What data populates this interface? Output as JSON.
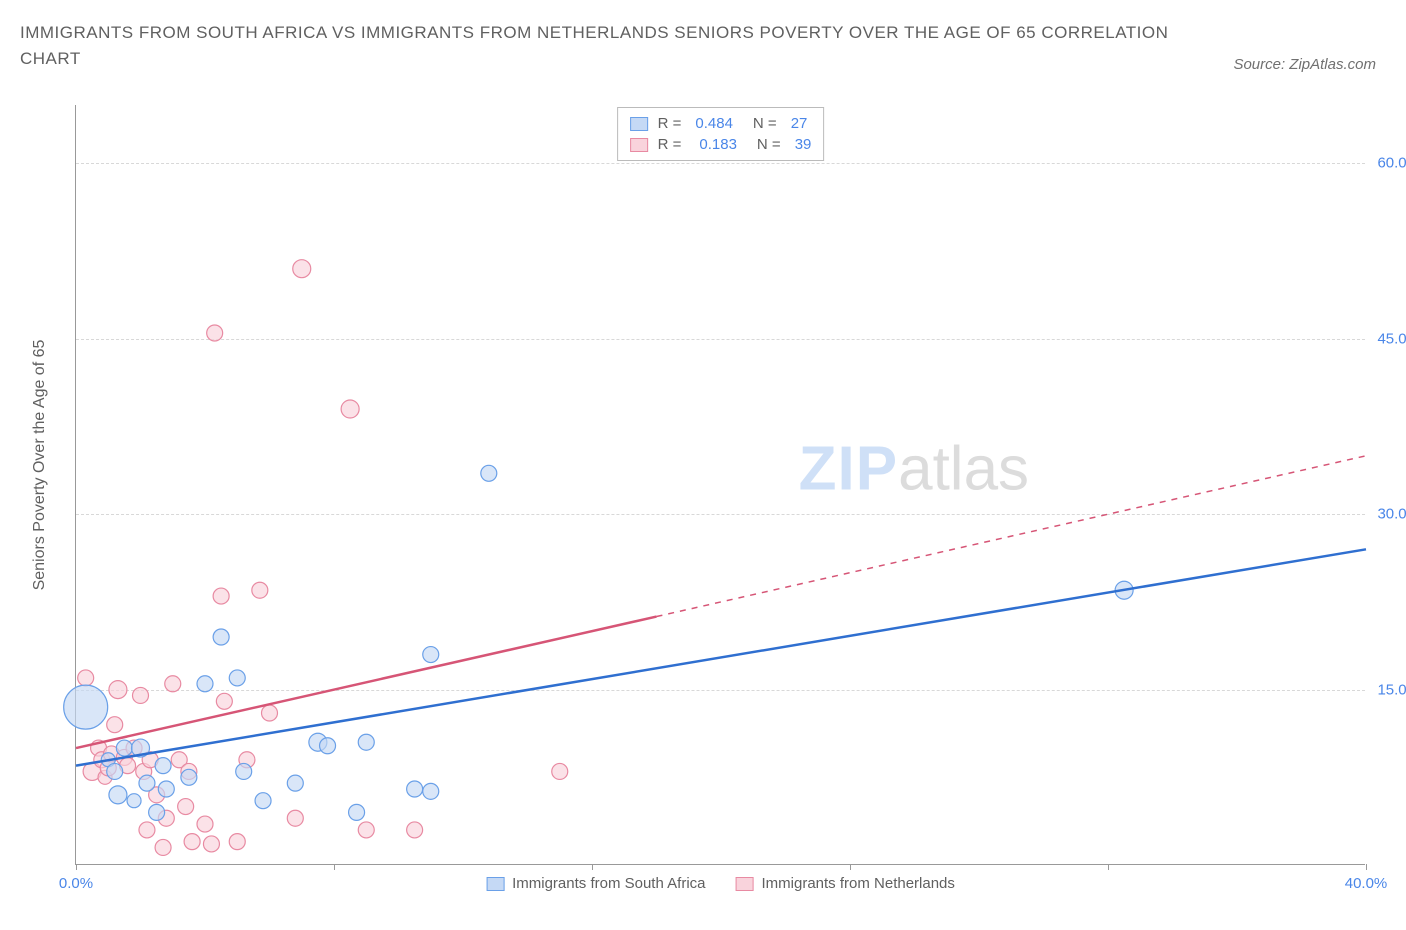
{
  "title": "IMMIGRANTS FROM SOUTH AFRICA VS IMMIGRANTS FROM NETHERLANDS SENIORS POVERTY OVER THE AGE OF 65 CORRELATION CHART",
  "source": "Source: ZipAtlas.com",
  "y_axis_label": "Seniors Poverty Over the Age of 65",
  "watermark": {
    "part1": "ZIP",
    "part2": "atlas"
  },
  "chart": {
    "type": "scatter",
    "background_color": "#ffffff",
    "grid_color": "#d8d8d8",
    "axis_color": "#999999",
    "xlim": [
      0,
      40
    ],
    "ylim": [
      0,
      65
    ],
    "x_ticks": [
      0,
      8,
      16,
      24,
      32,
      40
    ],
    "x_tick_labels": [
      "0.0%",
      "",
      "",
      "",
      "",
      "40.0%"
    ],
    "y_ticks_grid": [
      15,
      30,
      45,
      60
    ],
    "y_tick_labels": [
      "15.0%",
      "30.0%",
      "45.0%",
      "60.0%"
    ],
    "series": [
      {
        "id": "south_africa",
        "label": "Immigrants from South Africa",
        "fill_color": "#c5d9f5",
        "stroke_color": "#6aa0e8",
        "line_color": "#2f6fd0",
        "R": "0.484",
        "N": "27",
        "regression": {
          "x1": 0,
          "y1": 8.5,
          "x2": 40,
          "y2": 27.0,
          "solid_until_x": 40
        },
        "points": [
          {
            "x": 0.3,
            "y": 13.5,
            "r": 22
          },
          {
            "x": 1.0,
            "y": 9.0,
            "r": 7
          },
          {
            "x": 1.2,
            "y": 8.0,
            "r": 8
          },
          {
            "x": 1.3,
            "y": 6.0,
            "r": 9
          },
          {
            "x": 1.5,
            "y": 10.0,
            "r": 8
          },
          {
            "x": 1.8,
            "y": 5.5,
            "r": 7
          },
          {
            "x": 2.0,
            "y": 10.0,
            "r": 9
          },
          {
            "x": 2.2,
            "y": 7.0,
            "r": 8
          },
          {
            "x": 2.5,
            "y": 4.5,
            "r": 8
          },
          {
            "x": 2.7,
            "y": 8.5,
            "r": 8
          },
          {
            "x": 2.8,
            "y": 6.5,
            "r": 8
          },
          {
            "x": 3.5,
            "y": 7.5,
            "r": 8
          },
          {
            "x": 4.0,
            "y": 15.5,
            "r": 8
          },
          {
            "x": 4.5,
            "y": 19.5,
            "r": 8
          },
          {
            "x": 5.0,
            "y": 16.0,
            "r": 8
          },
          {
            "x": 5.2,
            "y": 8.0,
            "r": 8
          },
          {
            "x": 5.8,
            "y": 5.5,
            "r": 8
          },
          {
            "x": 6.8,
            "y": 7.0,
            "r": 8
          },
          {
            "x": 7.5,
            "y": 10.5,
            "r": 9
          },
          {
            "x": 7.8,
            "y": 10.2,
            "r": 8
          },
          {
            "x": 8.7,
            "y": 4.5,
            "r": 8
          },
          {
            "x": 9.0,
            "y": 10.5,
            "r": 8
          },
          {
            "x": 10.5,
            "y": 6.5,
            "r": 8
          },
          {
            "x": 11.0,
            "y": 18.0,
            "r": 8
          },
          {
            "x": 11.0,
            "y": 6.3,
            "r": 8
          },
          {
            "x": 12.8,
            "y": 33.5,
            "r": 8
          },
          {
            "x": 32.5,
            "y": 23.5,
            "r": 9
          }
        ]
      },
      {
        "id": "netherlands",
        "label": "Immigrants from Netherlands",
        "fill_color": "#f9d3dc",
        "stroke_color": "#e88aa2",
        "line_color": "#d65576",
        "R": "0.183",
        "N": "39",
        "regression": {
          "x1": 0,
          "y1": 10.0,
          "x2": 40,
          "y2": 35.0,
          "solid_until_x": 18
        },
        "points": [
          {
            "x": 0.3,
            "y": 16.0,
            "r": 8
          },
          {
            "x": 0.5,
            "y": 8.0,
            "r": 9
          },
          {
            "x": 0.7,
            "y": 10.0,
            "r": 8
          },
          {
            "x": 0.8,
            "y": 9.0,
            "r": 8
          },
          {
            "x": 0.9,
            "y": 7.5,
            "r": 7
          },
          {
            "x": 1.0,
            "y": 8.3,
            "r": 8
          },
          {
            "x": 1.1,
            "y": 9.5,
            "r": 8
          },
          {
            "x": 1.2,
            "y": 12.0,
            "r": 8
          },
          {
            "x": 1.3,
            "y": 15.0,
            "r": 9
          },
          {
            "x": 1.5,
            "y": 9.2,
            "r": 8
          },
          {
            "x": 1.6,
            "y": 8.5,
            "r": 8
          },
          {
            "x": 1.8,
            "y": 10.0,
            "r": 8
          },
          {
            "x": 2.0,
            "y": 14.5,
            "r": 8
          },
          {
            "x": 2.1,
            "y": 8.0,
            "r": 8
          },
          {
            "x": 2.2,
            "y": 3.0,
            "r": 8
          },
          {
            "x": 2.3,
            "y": 9.0,
            "r": 8
          },
          {
            "x": 2.5,
            "y": 6.0,
            "r": 8
          },
          {
            "x": 2.7,
            "y": 1.5,
            "r": 8
          },
          {
            "x": 2.8,
            "y": 4.0,
            "r": 8
          },
          {
            "x": 3.0,
            "y": 15.5,
            "r": 8
          },
          {
            "x": 3.2,
            "y": 9.0,
            "r": 8
          },
          {
            "x": 3.4,
            "y": 5.0,
            "r": 8
          },
          {
            "x": 3.5,
            "y": 8.0,
            "r": 8
          },
          {
            "x": 3.6,
            "y": 2.0,
            "r": 8
          },
          {
            "x": 4.0,
            "y": 3.5,
            "r": 8
          },
          {
            "x": 4.2,
            "y": 1.8,
            "r": 8
          },
          {
            "x": 4.3,
            "y": 45.5,
            "r": 8
          },
          {
            "x": 4.5,
            "y": 23.0,
            "r": 8
          },
          {
            "x": 4.6,
            "y": 14.0,
            "r": 8
          },
          {
            "x": 5.0,
            "y": 2.0,
            "r": 8
          },
          {
            "x": 5.3,
            "y": 9.0,
            "r": 8
          },
          {
            "x": 5.7,
            "y": 23.5,
            "r": 8
          },
          {
            "x": 6.0,
            "y": 13.0,
            "r": 8
          },
          {
            "x": 6.8,
            "y": 4.0,
            "r": 8
          },
          {
            "x": 7.0,
            "y": 51.0,
            "r": 9
          },
          {
            "x": 8.5,
            "y": 39.0,
            "r": 9
          },
          {
            "x": 9.0,
            "y": 3.0,
            "r": 8
          },
          {
            "x": 10.5,
            "y": 3.0,
            "r": 8
          },
          {
            "x": 15.0,
            "y": 8.0,
            "r": 8
          }
        ]
      }
    ]
  }
}
